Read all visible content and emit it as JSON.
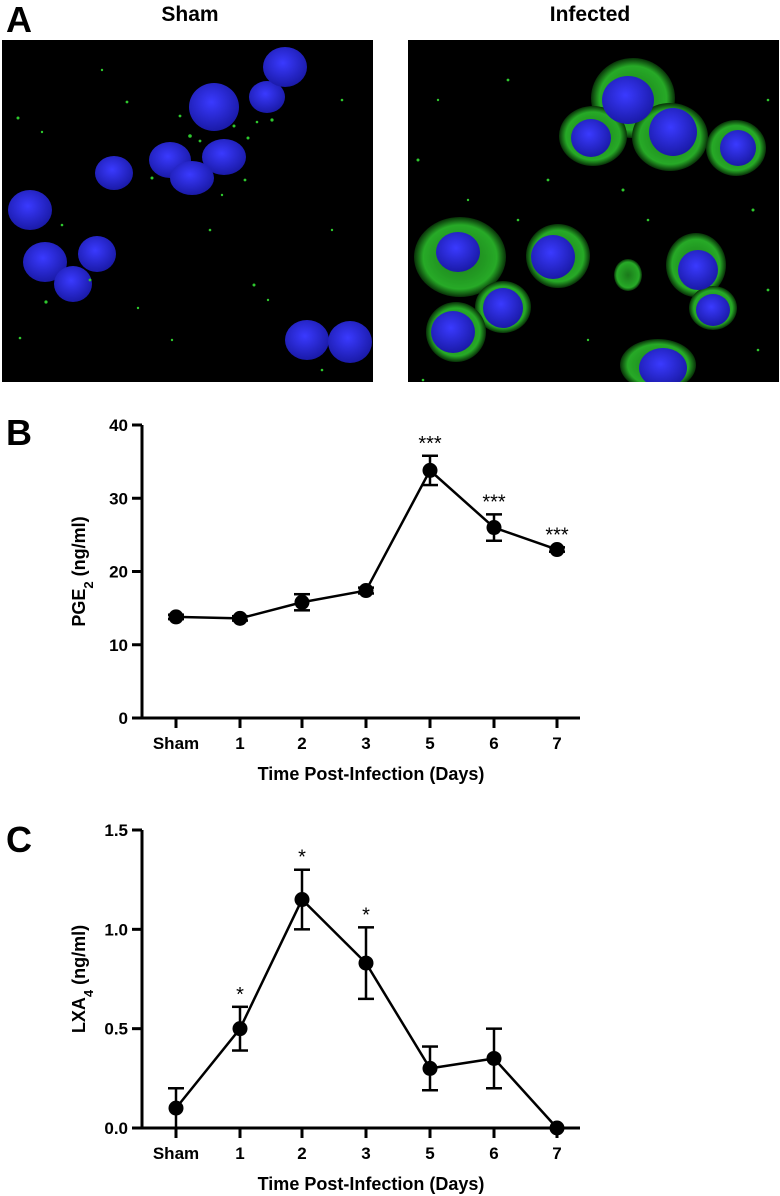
{
  "panels": {
    "a_letter": "A",
    "b_letter": "B",
    "c_letter": "C"
  },
  "images": [
    {
      "title": "Sham",
      "bg": "#000000",
      "nucleus_color": "#2a2ae0",
      "stain_color": "#2ec82e"
    },
    {
      "title": "Infected",
      "bg": "#000000",
      "nucleus_color": "#2a2ae0",
      "stain_color": "#2ec82e"
    }
  ],
  "chart_data": [
    {
      "type": "line",
      "categories": [
        "Sham",
        "1",
        "2",
        "3",
        "5",
        "6",
        "7"
      ],
      "values": [
        13.8,
        13.6,
        15.8,
        17.4,
        33.8,
        26.0,
        23.0
      ],
      "errors": [
        0.3,
        0.3,
        1.1,
        0.4,
        2.0,
        1.8,
        0.3
      ],
      "significance": [
        "",
        "",
        "",
        "",
        "***",
        "***",
        "***"
      ],
      "ylabel_main": "PGE",
      "ylabel_sub": "2",
      "ylabel_tail": " (ng/ml)",
      "xlabel": "Time Post-Infection (Days)",
      "yticks": [
        "0",
        "10",
        "20",
        "30",
        "40"
      ],
      "ylim": [
        0,
        40
      ]
    },
    {
      "type": "line",
      "categories": [
        "Sham",
        "1",
        "2",
        "3",
        "5",
        "6",
        "7"
      ],
      "values": [
        0.1,
        0.5,
        1.15,
        0.83,
        0.3,
        0.35,
        0.0
      ],
      "errors": [
        0.1,
        0.11,
        0.15,
        0.18,
        0.11,
        0.15,
        0.0
      ],
      "significance": [
        "",
        "*",
        "*",
        "*",
        "",
        "",
        ""
      ],
      "ylabel_main": "LXA",
      "ylabel_sub": "4",
      "ylabel_tail": " (ng/ml)",
      "xlabel": "Time Post-Infection (Days)",
      "yticks": [
        "0.0",
        "0.5",
        "1.0",
        "1.5"
      ],
      "ylim": [
        0,
        1.5
      ]
    }
  ]
}
